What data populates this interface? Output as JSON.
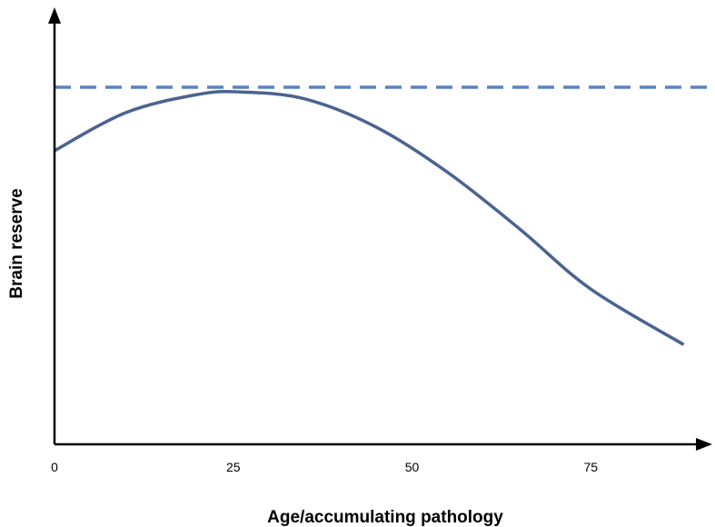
{
  "chart_data": {
    "type": "line",
    "xlabel": "Age/accumulating pathology",
    "ylabel": "Brain reserve",
    "xlim": [
      0,
      92
    ],
    "ylim": [
      0,
      100
    ],
    "x_ticks": [
      "0",
      "25",
      "50",
      "75"
    ],
    "tick_values": [
      0,
      25,
      50,
      75
    ],
    "grid": false,
    "legend": "none",
    "series": [
      {
        "style": "solid",
        "color": "#4a6391",
        "x": [
          0,
          10,
          20,
          26,
          35,
          45,
          55,
          65,
          75,
          88
        ],
        "y": [
          81,
          91.5,
          96.5,
          97.2,
          95.3,
          87.5,
          75,
          59.5,
          42.8,
          27.5
        ]
      },
      {
        "style": "dashed",
        "color": "#5b82c0",
        "x": [
          0,
          92
        ],
        "y": [
          98.5,
          98.5
        ]
      }
    ]
  }
}
